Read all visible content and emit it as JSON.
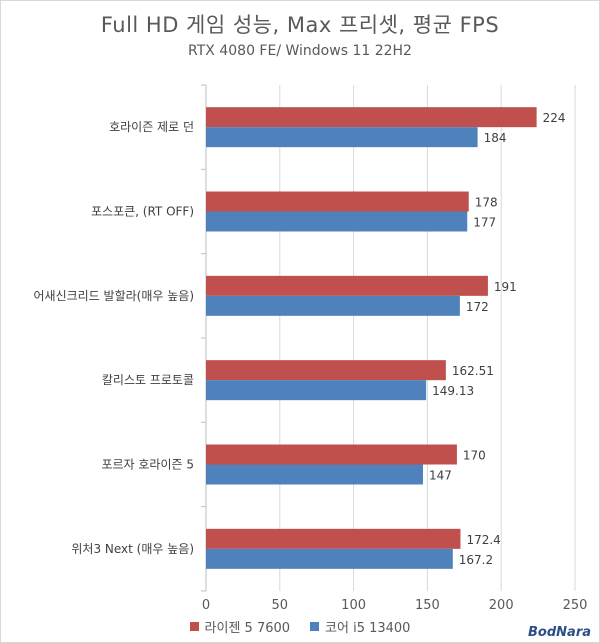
{
  "chart_data": {
    "type": "bar",
    "orientation": "horizontal",
    "title": "Full HD 게임 성능, Max 프리셋, 평균 FPS",
    "subtitle": "RTX 4080 FE/ Windows 11 22H2",
    "categories": [
      "호라이즌 제로 던",
      "포스포큰, (RT OFF)",
      "어새신크리드 발할라(매우 높음)",
      "칼리스토 프로토콜",
      "포르자 호라이즌 5",
      "위처3 Next (매우 높음)"
    ],
    "series": [
      {
        "name": "라이젠 5 7600",
        "color": "#c0504d",
        "values": [
          224,
          178,
          191,
          162.51,
          170,
          172.4
        ],
        "labels": [
          "224",
          "178",
          "191",
          "162.51",
          "170",
          "172.4"
        ]
      },
      {
        "name": "코어 i5 13400",
        "color": "#4f81bd",
        "values": [
          184,
          177,
          172,
          149.13,
          147,
          167.2
        ],
        "labels": [
          "184",
          "177",
          "172",
          "149.13",
          "147",
          "167.2"
        ]
      }
    ],
    "xlim": [
      0,
      250
    ],
    "xticks": [
      0,
      50,
      100,
      150,
      200,
      250
    ],
    "xtick_labels": [
      "0",
      "50",
      "100",
      "150",
      "200",
      "250"
    ],
    "grid": true,
    "legend_position": "bottom"
  },
  "watermark": "BodNara"
}
